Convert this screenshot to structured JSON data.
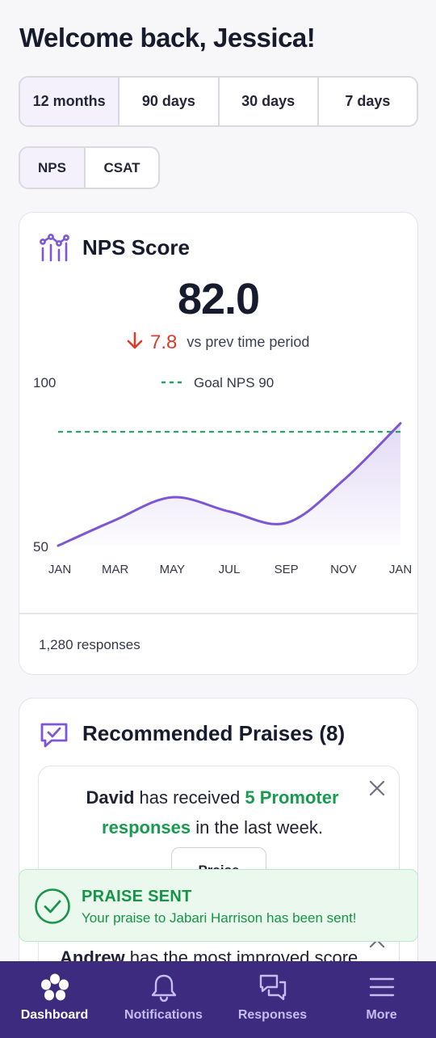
{
  "header": {
    "welcome": "Welcome back, Jessica!"
  },
  "time_ranges": {
    "options": [
      "12 months",
      "90 days",
      "30 days",
      "7 days"
    ],
    "selected": "12 months"
  },
  "metrics": {
    "options": [
      "NPS",
      "CSAT"
    ],
    "selected": "NPS"
  },
  "nps_card": {
    "icon": "chart-line-icon",
    "title": "NPS Score",
    "value": "82.0",
    "delta_icon": "arrow-down-icon",
    "delta_value": "7.8",
    "delta_label": "vs prev time period",
    "responses": "1,280 responses",
    "colors": {
      "line": "#7c56d4",
      "goal": "#1fa35c",
      "delta": "#d93b2c"
    }
  },
  "chart_data": {
    "type": "area",
    "title": "",
    "xlabel": "",
    "ylabel": "",
    "categories": [
      "JAN",
      "MAR",
      "MAY",
      "JUL",
      "SEP",
      "NOV",
      "JAN"
    ],
    "series": [
      {
        "values": [
          50,
          59,
          67,
          62,
          58,
          73,
          93
        ]
      }
    ],
    "ylim": [
      50,
      100
    ],
    "y_tick_labels": [
      "100",
      "50"
    ],
    "goal": {
      "label": "Goal NPS 90",
      "value": 90
    },
    "grid": false,
    "legend": "top-center"
  },
  "praises": {
    "icon": "chat-check-icon",
    "title": "Recommended Praises (8)",
    "item1": {
      "name": "David",
      "text_mid": " has received ",
      "highlight": "5 Promoter responses",
      "text_end": " in the last week.",
      "button": "Praise"
    },
    "item2": {
      "name": "Andrew",
      "text": " has the most improved score"
    }
  },
  "toast": {
    "icon": "check-circle-icon",
    "title": "PRAISE SENT",
    "message": "Your praise to Jabari Harrison has been sent!"
  },
  "tabbar": {
    "items": [
      {
        "label": "Dashboard",
        "icon": "star-flower-icon",
        "active": true
      },
      {
        "label": "Notifications",
        "icon": "bell-icon",
        "active": false
      },
      {
        "label": "Responses",
        "icon": "chat-bubbles-icon",
        "active": false
      },
      {
        "label": "More",
        "icon": "menu-icon",
        "active": false
      }
    ]
  }
}
